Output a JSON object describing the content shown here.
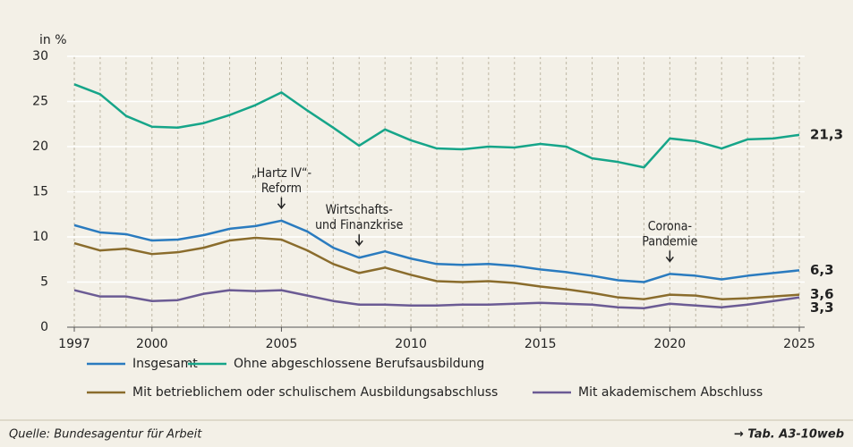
{
  "chart_data": {
    "type": "line",
    "y_label": "in %",
    "x": [
      1997,
      1998,
      1999,
      2000,
      2001,
      2002,
      2003,
      2004,
      2005,
      2006,
      2007,
      2008,
      2009,
      2010,
      2011,
      2012,
      2013,
      2014,
      2015,
      2016,
      2017,
      2018,
      2019,
      2020,
      2021,
      2022,
      2023,
      2024,
      2025
    ],
    "series": [
      {
        "name": "Insgesamt",
        "color": "#2a7bbf",
        "last_label": "6,3",
        "values": [
          11.3,
          10.5,
          10.3,
          9.6,
          9.7,
          10.2,
          10.9,
          11.2,
          11.8,
          10.6,
          8.8,
          7.7,
          8.4,
          7.6,
          7.0,
          6.9,
          7.0,
          6.8,
          6.4,
          6.1,
          5.7,
          5.2,
          5.0,
          5.9,
          5.7,
          5.3,
          5.7,
          6.0,
          6.3
        ]
      },
      {
        "name": "Ohne abgeschlossene Berufsausbildung",
        "color": "#16a589",
        "last_label": "21,3",
        "values": [
          26.9,
          25.8,
          23.4,
          22.2,
          22.1,
          22.6,
          23.5,
          24.6,
          26.0,
          24.0,
          22.1,
          20.1,
          21.9,
          20.7,
          19.8,
          19.7,
          20.0,
          19.9,
          20.3,
          20.0,
          18.7,
          18.3,
          17.7,
          20.9,
          20.6,
          19.8,
          20.8,
          20.9,
          21.3
        ]
      },
      {
        "name": "Mit betrieblichem oder schulischem Ausbildungsabschluss",
        "color": "#8a6c2c",
        "last_label": "3,6",
        "values": [
          9.3,
          8.5,
          8.7,
          8.1,
          8.3,
          8.8,
          9.6,
          9.9,
          9.7,
          8.5,
          7.0,
          6.0,
          6.6,
          5.8,
          5.1,
          5.0,
          5.1,
          4.9,
          4.5,
          4.2,
          3.8,
          3.3,
          3.1,
          3.6,
          3.5,
          3.1,
          3.2,
          3.4,
          3.6
        ]
      },
      {
        "name": "Mit akademischem Abschluss",
        "color": "#6b5b94",
        "last_label": "3,3",
        "values": [
          4.1,
          3.4,
          3.4,
          2.9,
          3.0,
          3.7,
          4.1,
          4.0,
          4.1,
          3.5,
          2.9,
          2.5,
          2.5,
          2.4,
          2.4,
          2.5,
          2.5,
          2.6,
          2.7,
          2.6,
          2.5,
          2.2,
          2.1,
          2.6,
          2.4,
          2.2,
          2.5,
          2.9,
          3.3
        ]
      }
    ],
    "xlim": [
      1997,
      2025
    ],
    "xticks": [
      1997,
      2000,
      2005,
      2010,
      2015,
      2020,
      2025
    ],
    "ylim": [
      0,
      30
    ],
    "yticks": [
      0,
      5,
      10,
      15,
      20,
      25,
      30
    ],
    "grid": true,
    "annotations": [
      {
        "x": 2005,
        "lines": [
          "„Hartz IV“-",
          "Reform"
        ]
      },
      {
        "x": 2008,
        "lines": [
          "Wirtschafts-",
          "und Finanzkrise"
        ]
      },
      {
        "x": 2020,
        "lines": [
          "Corona-",
          "Pandemie"
        ]
      }
    ],
    "source": "Quelle: Bundesagentur für Arbeit",
    "reference": "→ Tab. A3-10web"
  }
}
